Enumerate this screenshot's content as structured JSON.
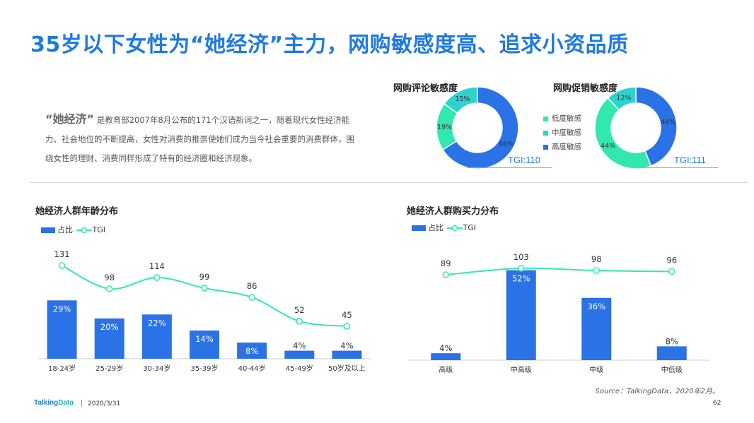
{
  "title": "35岁以下女性为“她经济”主力，网购敏感度高、追求小资品质",
  "intro": {
    "lead": "“她经济”",
    "text": "是教育部2007年8月公布的171个汉语新词之一，随着现代女性经济能力、社会地位的不断提高，女性对消费的推崇使她们成为当今社会重要的消费群体，围绕女性的理财、消费同样形成了特有的经济圈和经济现象。"
  },
  "colors": {
    "low": "#33e8b0",
    "mid": "#2ed3d0",
    "high": "#2a72e5",
    "tgi_line": "#33e8b0",
    "title": "#1f7ae0"
  },
  "donut_legend": [
    {
      "label": "低度敏感",
      "color": "#33e8b0"
    },
    {
      "label": "中度敏感",
      "color": "#2ed3d0"
    },
    {
      "label": "高度敏感",
      "color": "#2a72e5"
    }
  ],
  "chart_data": [
    {
      "type": "pie",
      "title": "网购评论敏感度",
      "labels": [
        "高度敏感",
        "低度敏感",
        "中度敏感"
      ],
      "values": [
        66,
        19,
        15
      ],
      "value_labels": [
        "66%",
        "19%",
        "15%"
      ],
      "colors": [
        "#2a72e5",
        "#33e8b0",
        "#2ed3d0"
      ],
      "note": "TGI:110"
    },
    {
      "type": "pie",
      "title": "网购促销敏感度",
      "labels": [
        "高度敏感",
        "低度敏感",
        "中度敏感"
      ],
      "values": [
        44,
        44,
        12
      ],
      "value_labels": [
        "44%",
        "44%",
        "12%"
      ],
      "colors": [
        "#2a72e5",
        "#33e8b0",
        "#2ed3d0"
      ],
      "note": "TGI:111"
    },
    {
      "type": "bar",
      "title": "她经济人群年龄分布",
      "categories": [
        "18-24岁",
        "25-29岁",
        "30-34岁",
        "35-39岁",
        "40-44岁",
        "45-49岁",
        "50岁及以上"
      ],
      "series": [
        {
          "name": "占比",
          "type": "bar",
          "values": [
            29,
            20,
            22,
            14,
            8,
            4,
            4
          ],
          "value_labels": [
            "29%",
            "20%",
            "22%",
            "14%",
            "8%",
            "4%",
            "4%"
          ]
        },
        {
          "name": "TGI",
          "type": "line",
          "values": [
            131,
            98,
            114,
            99,
            86,
            52,
            45
          ],
          "value_labels": [
            "131",
            "98",
            "114",
            "99",
            "86",
            "52",
            "45"
          ]
        }
      ]
    },
    {
      "type": "bar",
      "title": "她经济人群购买力分布",
      "categories": [
        "高级",
        "中高级",
        "中级",
        "中低级"
      ],
      "series": [
        {
          "name": "占比",
          "type": "bar",
          "values": [
            4,
            52,
            36,
            8
          ],
          "value_labels": [
            "4%",
            "52%",
            "36%",
            "8%"
          ]
        },
        {
          "name": "TGI",
          "type": "line",
          "values": [
            89,
            103,
            98,
            96
          ],
          "value_labels": [
            "89",
            "103",
            "98",
            "96"
          ]
        }
      ]
    }
  ],
  "source": "Source：TalkingData，2020年2月。",
  "footer": {
    "logo_a": "Talking",
    "logo_b": "Data",
    "date": "2020/3/31",
    "page": "62"
  }
}
